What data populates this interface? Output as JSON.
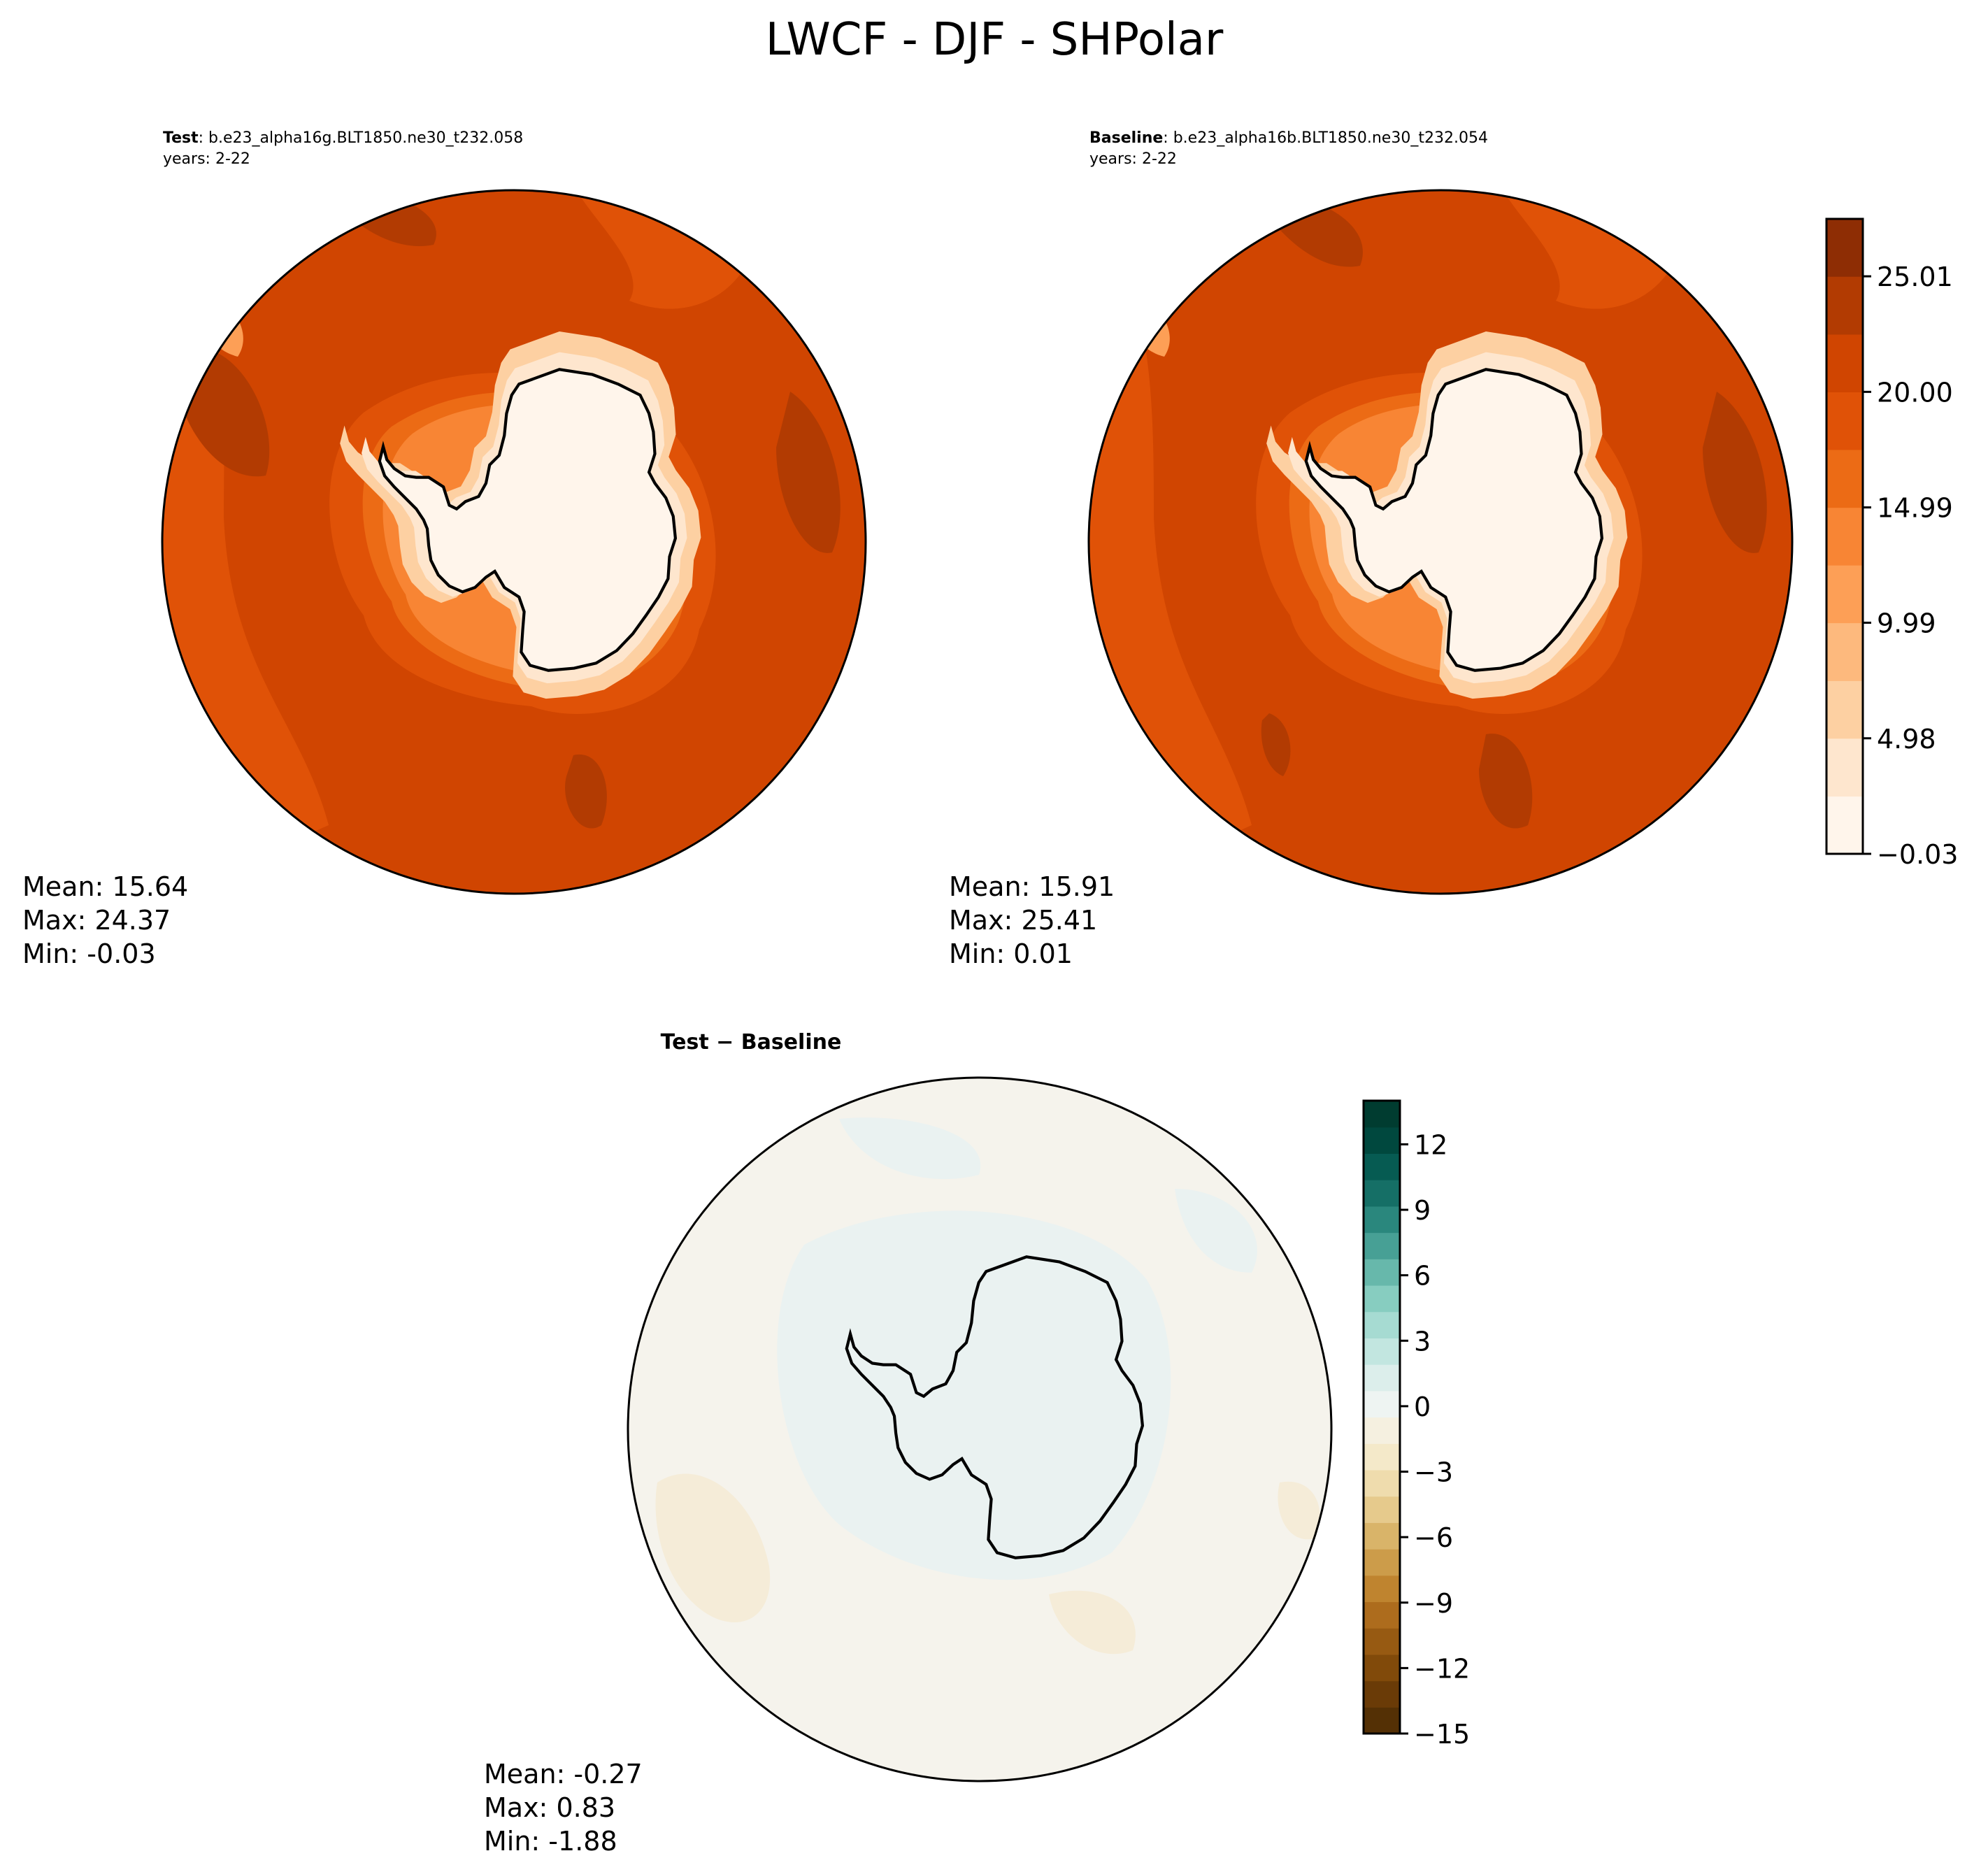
{
  "figure": {
    "title": "LWCF - DJF - SHPolar"
  },
  "panels": [
    {
      "id": "test",
      "label_bold": "Test",
      "label_rest": ": b.e23_alpha16g.BLT1850.ne30_t232.058",
      "years": "years: 2-22",
      "stats": {
        "mean": "Mean: 15.64",
        "max": "Max: 24.37",
        "min": "Min: -0.03"
      },
      "colormap": "Oranges"
    },
    {
      "id": "baseline",
      "label_bold": "Baseline",
      "label_rest": ": b.e23_alpha16b.BLT1850.ne30_t232.054",
      "years": "years: 2-22",
      "stats": {
        "mean": "Mean: 15.91",
        "max": "Max: 25.41",
        "min": "Min:  0.01"
      },
      "colormap": "Oranges"
    },
    {
      "id": "difference",
      "label_bold": "Test − Baseline",
      "stats": {
        "mean": "Mean: -0.27",
        "max": "Max:  0.83",
        "min": "Min: -1.88"
      },
      "colormap": "BrBG"
    }
  ],
  "colorbars": {
    "main": {
      "ticks": [
        "−0.03",
        "4.98",
        "9.99",
        "14.99",
        "20.00",
        "25.01"
      ],
      "tick_values": [
        -0.03,
        4.98,
        9.99,
        14.99,
        20.0,
        25.01
      ],
      "range": [
        -0.03,
        27.5
      ],
      "levels": [
        -0.03,
        2.47,
        4.98,
        7.48,
        9.99,
        12.49,
        14.99,
        17.5,
        20.0,
        22.5,
        25.01,
        27.5
      ],
      "colors": [
        "#fff5eb",
        "#fee6ce",
        "#fdd0a2",
        "#fdb97d",
        "#fd9f56",
        "#f88534",
        "#ec6b15",
        "#e05207",
        "#d04501",
        "#b23b02",
        "#8e2d04"
      ]
    },
    "diff": {
      "ticks": [
        "−15",
        "−12",
        "−9",
        "−6",
        "−3",
        "0",
        "3",
        "6",
        "9",
        "12"
      ],
      "tick_values": [
        -15,
        -12,
        -9,
        -6,
        -3,
        0,
        3,
        6,
        9,
        12
      ],
      "range": [
        -15,
        14
      ],
      "colors": [
        "#543005",
        "#6a3b07",
        "#814a0a",
        "#975a12",
        "#ad6c1d",
        "#bf842f",
        "#cc9c4a",
        "#d9b469",
        "#e6ca8c",
        "#efdcad",
        "#f4e9c9",
        "#f5f0e0",
        "#eef4f2",
        "#dceeeb",
        "#c2e6e0",
        "#a6dbd2",
        "#87cdc0",
        "#67b8ab",
        "#47a095",
        "#2a877d",
        "#156f66",
        "#065b52",
        "#00483e",
        "#003c30"
      ]
    }
  },
  "colors": {
    "diff_background": "#f5f3ec",
    "diff_warm_patch": "#f5ecd8",
    "diff_cool_patch": "#eaf2f1",
    "coastline": "#000000"
  }
}
